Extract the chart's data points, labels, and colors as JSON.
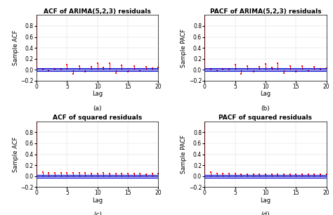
{
  "title_a": "ACF of ARIMA(5,2,3) residuals",
  "title_b": "PACF of ARIMA(5,2,3) residuals",
  "title_c": "ACF of squared residuals",
  "title_d": "PACF of squared residuals",
  "label_a": "(a)",
  "label_b": "(b)",
  "label_c": "(c)",
  "label_d": "(d)",
  "xlabel": "Lag",
  "ylabel_acf": "Sample ACF",
  "ylabel_pacf": "Sample PACF",
  "xlim": [
    0,
    20
  ],
  "ylim": [
    -0.2,
    1.0
  ],
  "bar_color": "#ff0000",
  "line_color": "#0000cc",
  "background_color": "#ffffff",
  "acf_residuals": [
    0.0,
    0.01,
    -0.01,
    0.005,
    0.005,
    0.09,
    -0.07,
    0.07,
    -0.04,
    0.05,
    0.12,
    0.04,
    0.12,
    -0.06,
    0.08,
    -0.04,
    0.07,
    -0.02,
    0.06,
    0.03,
    0.04
  ],
  "pacf_residuals": [
    0.0,
    0.01,
    -0.01,
    0.005,
    0.005,
    0.09,
    -0.07,
    0.07,
    -0.04,
    0.05,
    0.11,
    0.04,
    0.12,
    -0.06,
    0.07,
    -0.04,
    0.07,
    -0.02,
    0.06,
    0.02,
    0.03
  ],
  "acf_sq_residuals": [
    0.0,
    0.07,
    0.06,
    0.06,
    0.06,
    0.06,
    0.06,
    0.06,
    0.06,
    0.05,
    0.05,
    0.06,
    0.05,
    0.05,
    0.05,
    0.05,
    0.05,
    0.05,
    0.04,
    0.05,
    0.05
  ],
  "pacf_sq_residuals": [
    0.0,
    0.07,
    0.05,
    0.05,
    0.05,
    0.05,
    0.04,
    0.04,
    0.04,
    0.04,
    0.04,
    0.04,
    0.04,
    0.04,
    0.04,
    0.04,
    0.03,
    0.03,
    0.03,
    0.03,
    0.03
  ],
  "conf_level": 0.025,
  "title_fontsize": 6.5,
  "label_fontsize": 6,
  "tick_fontsize": 5.5,
  "sublabel_fontsize": 6.5
}
